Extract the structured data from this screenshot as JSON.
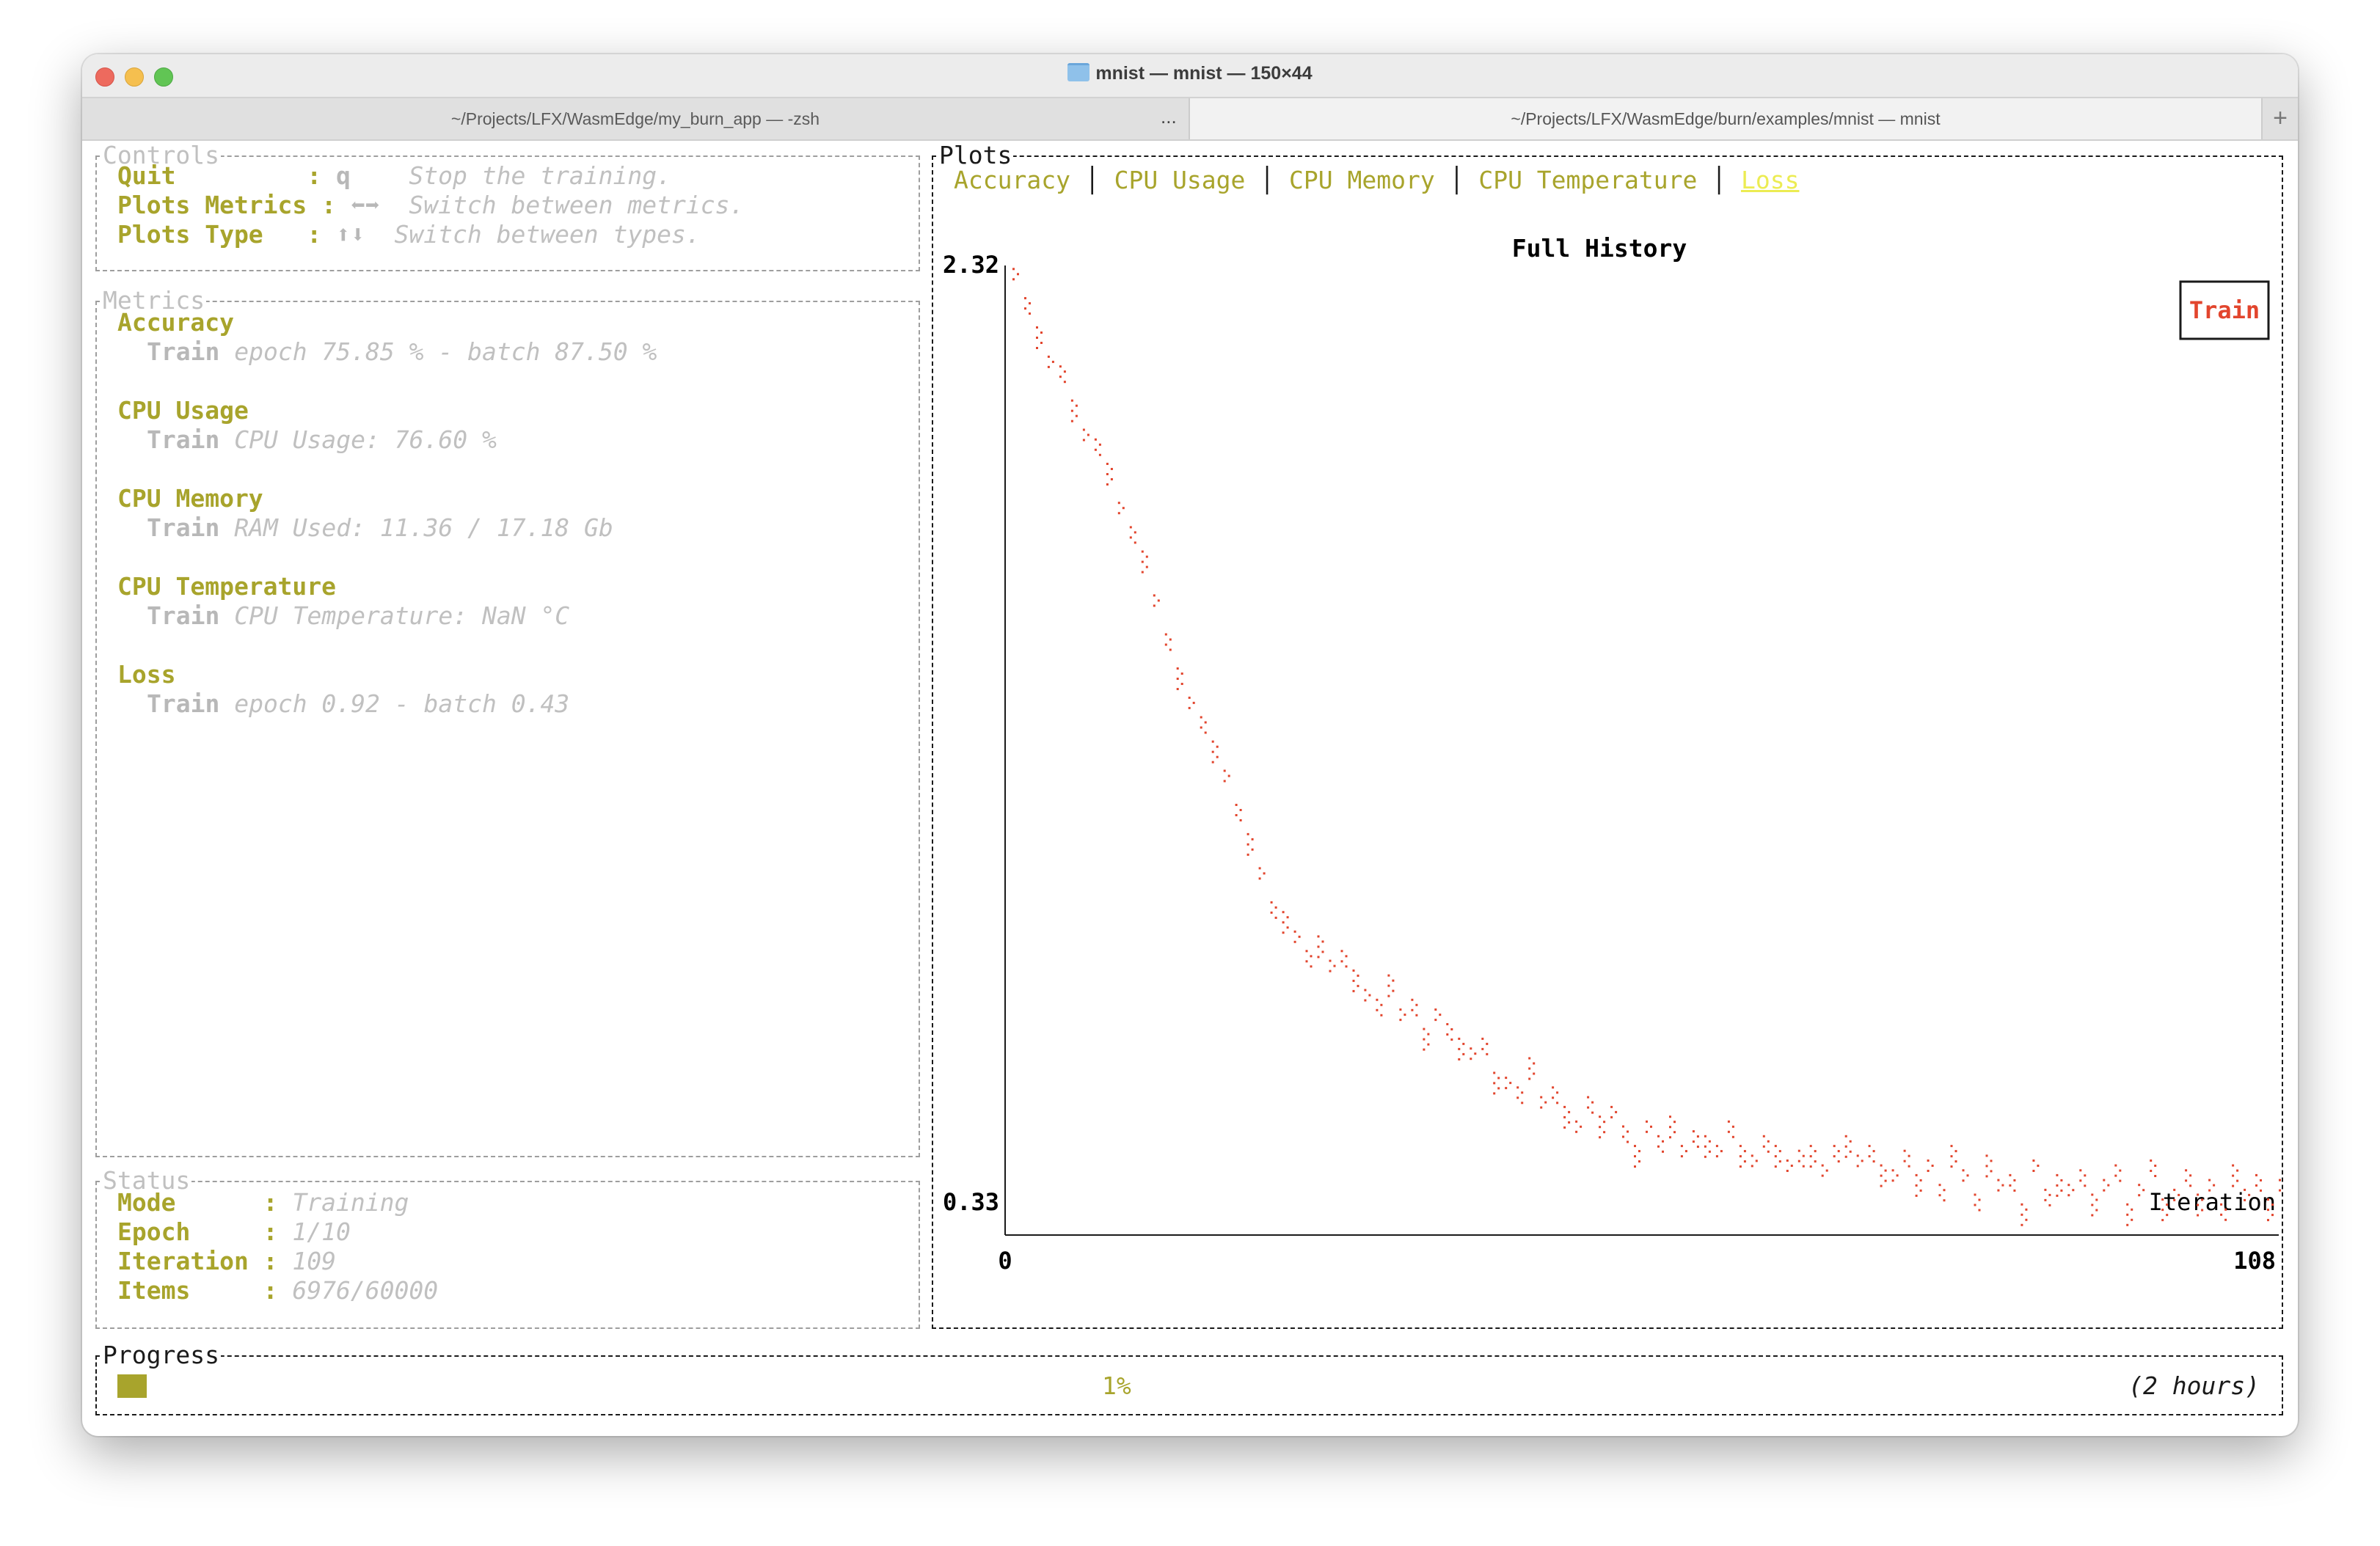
{
  "window": {
    "title": "mnist — mnist — 150×44",
    "tabs": [
      {
        "label": "~/Projects/LFX/WasmEdge/my_burn_app — -zsh"
      },
      {
        "label": "~/Projects/LFX/WasmEdge/burn/examples/mnist — mnist"
      }
    ],
    "tab_more": "...",
    "tab_add": "+"
  },
  "controls": {
    "title": "Controls",
    "items": [
      {
        "key": "Quit         :",
        "shortcut": "q  ",
        "desc": "Stop the training."
      },
      {
        "key": "Plots Metrics :",
        "shortcut": "⬅➡",
        "desc": "Switch between metrics."
      },
      {
        "key": "Plots Type   :",
        "shortcut": "⬆⬇",
        "desc": "Switch between types."
      }
    ]
  },
  "metrics": {
    "title": "Metrics",
    "groups": [
      {
        "name": "Accuracy",
        "split": "Train",
        "value": "epoch 75.85 % - batch 87.50 %"
      },
      {
        "name": "CPU Usage",
        "split": "Train",
        "value": "CPU Usage: 76.60 %"
      },
      {
        "name": "CPU Memory",
        "split": "Train",
        "value": "RAM Used: 11.36 / 17.18 Gb"
      },
      {
        "name": "CPU Temperature",
        "split": "Train",
        "value": "CPU Temperature: NaN °C"
      },
      {
        "name": "Loss",
        "split": "Train",
        "value": "epoch 0.92 - batch 0.43"
      }
    ]
  },
  "status": {
    "title": "Status",
    "items": [
      {
        "key": "Mode      :",
        "value": "Training"
      },
      {
        "key": "Epoch     :",
        "value": "1/10"
      },
      {
        "key": "Iteration :",
        "value": "109"
      },
      {
        "key": "Items     :",
        "value": "6976/60000"
      }
    ]
  },
  "plots": {
    "title": "Plots",
    "tabs": [
      "Accuracy",
      "CPU Usage",
      "CPU Memory",
      "CPU Temperature",
      "Loss"
    ],
    "selected_tab": 4,
    "selected_color": "#ecec52"
  },
  "chart_data": {
    "type": "scatter",
    "title": "Full History",
    "xlabel": "Iteration",
    "ylabel": "",
    "xlim": [
      0,
      108
    ],
    "ylim": [
      0.33,
      2.32
    ],
    "x_tick_labels": [
      "0",
      "108"
    ],
    "y_tick_labels": [
      "2.32",
      "0.33"
    ],
    "legend": {
      "placement": "top-right"
    },
    "series": [
      {
        "name": "Train",
        "color": "#e2452d",
        "x": [
          0,
          1,
          2,
          3,
          4,
          5,
          6,
          7,
          8,
          9,
          10,
          11,
          12,
          13,
          14,
          15,
          16,
          17,
          18,
          19,
          20,
          21,
          22,
          23,
          24,
          25,
          26,
          27,
          28,
          29,
          30,
          31,
          32,
          33,
          34,
          35,
          36,
          37,
          38,
          39,
          40,
          41,
          42,
          43,
          44,
          45,
          46,
          47,
          48,
          49,
          50,
          51,
          52,
          53,
          54,
          55,
          56,
          57,
          58,
          59,
          60,
          61,
          62,
          63,
          64,
          65,
          66,
          67,
          68,
          69,
          70,
          71,
          72,
          73,
          74,
          75,
          76,
          77,
          78,
          79,
          80,
          81,
          82,
          83,
          84,
          85,
          86,
          87,
          88,
          89,
          90,
          91,
          92,
          93,
          94,
          95,
          96,
          97,
          98,
          99,
          100,
          101,
          102,
          103,
          104,
          105,
          106,
          107,
          108
        ],
        "y": [
          2.3,
          2.24,
          2.18,
          2.12,
          2.1,
          2.03,
          1.97,
          1.95,
          1.9,
          1.82,
          1.77,
          1.72,
          1.63,
          1.55,
          1.48,
          1.42,
          1.38,
          1.33,
          1.27,
          1.2,
          1.14,
          1.07,
          1.0,
          0.98,
          0.94,
          0.9,
          0.93,
          0.88,
          0.9,
          0.86,
          0.82,
          0.8,
          0.85,
          0.78,
          0.8,
          0.74,
          0.78,
          0.75,
          0.72,
          0.7,
          0.72,
          0.65,
          0.64,
          0.62,
          0.68,
          0.6,
          0.62,
          0.58,
          0.55,
          0.6,
          0.56,
          0.58,
          0.54,
          0.5,
          0.55,
          0.52,
          0.56,
          0.5,
          0.53,
          0.52,
          0.5,
          0.55,
          0.5,
          0.48,
          0.52,
          0.5,
          0.47,
          0.49,
          0.5,
          0.46,
          0.5,
          0.52,
          0.48,
          0.5,
          0.46,
          0.45,
          0.49,
          0.44,
          0.47,
          0.42,
          0.5,
          0.45,
          0.4,
          0.48,
          0.43,
          0.44,
          0.38,
          0.47,
          0.41,
          0.44,
          0.42,
          0.45,
          0.4,
          0.43,
          0.46,
          0.38,
          0.42,
          0.47,
          0.39,
          0.41,
          0.45,
          0.4,
          0.43,
          0.38,
          0.46,
          0.41,
          0.44,
          0.39,
          0.43
        ]
      }
    ]
  },
  "progress": {
    "title": "Progress",
    "percent": 1,
    "percent_label": "1%",
    "eta": "(2 hours)",
    "bar_color": "#a8a42c"
  }
}
